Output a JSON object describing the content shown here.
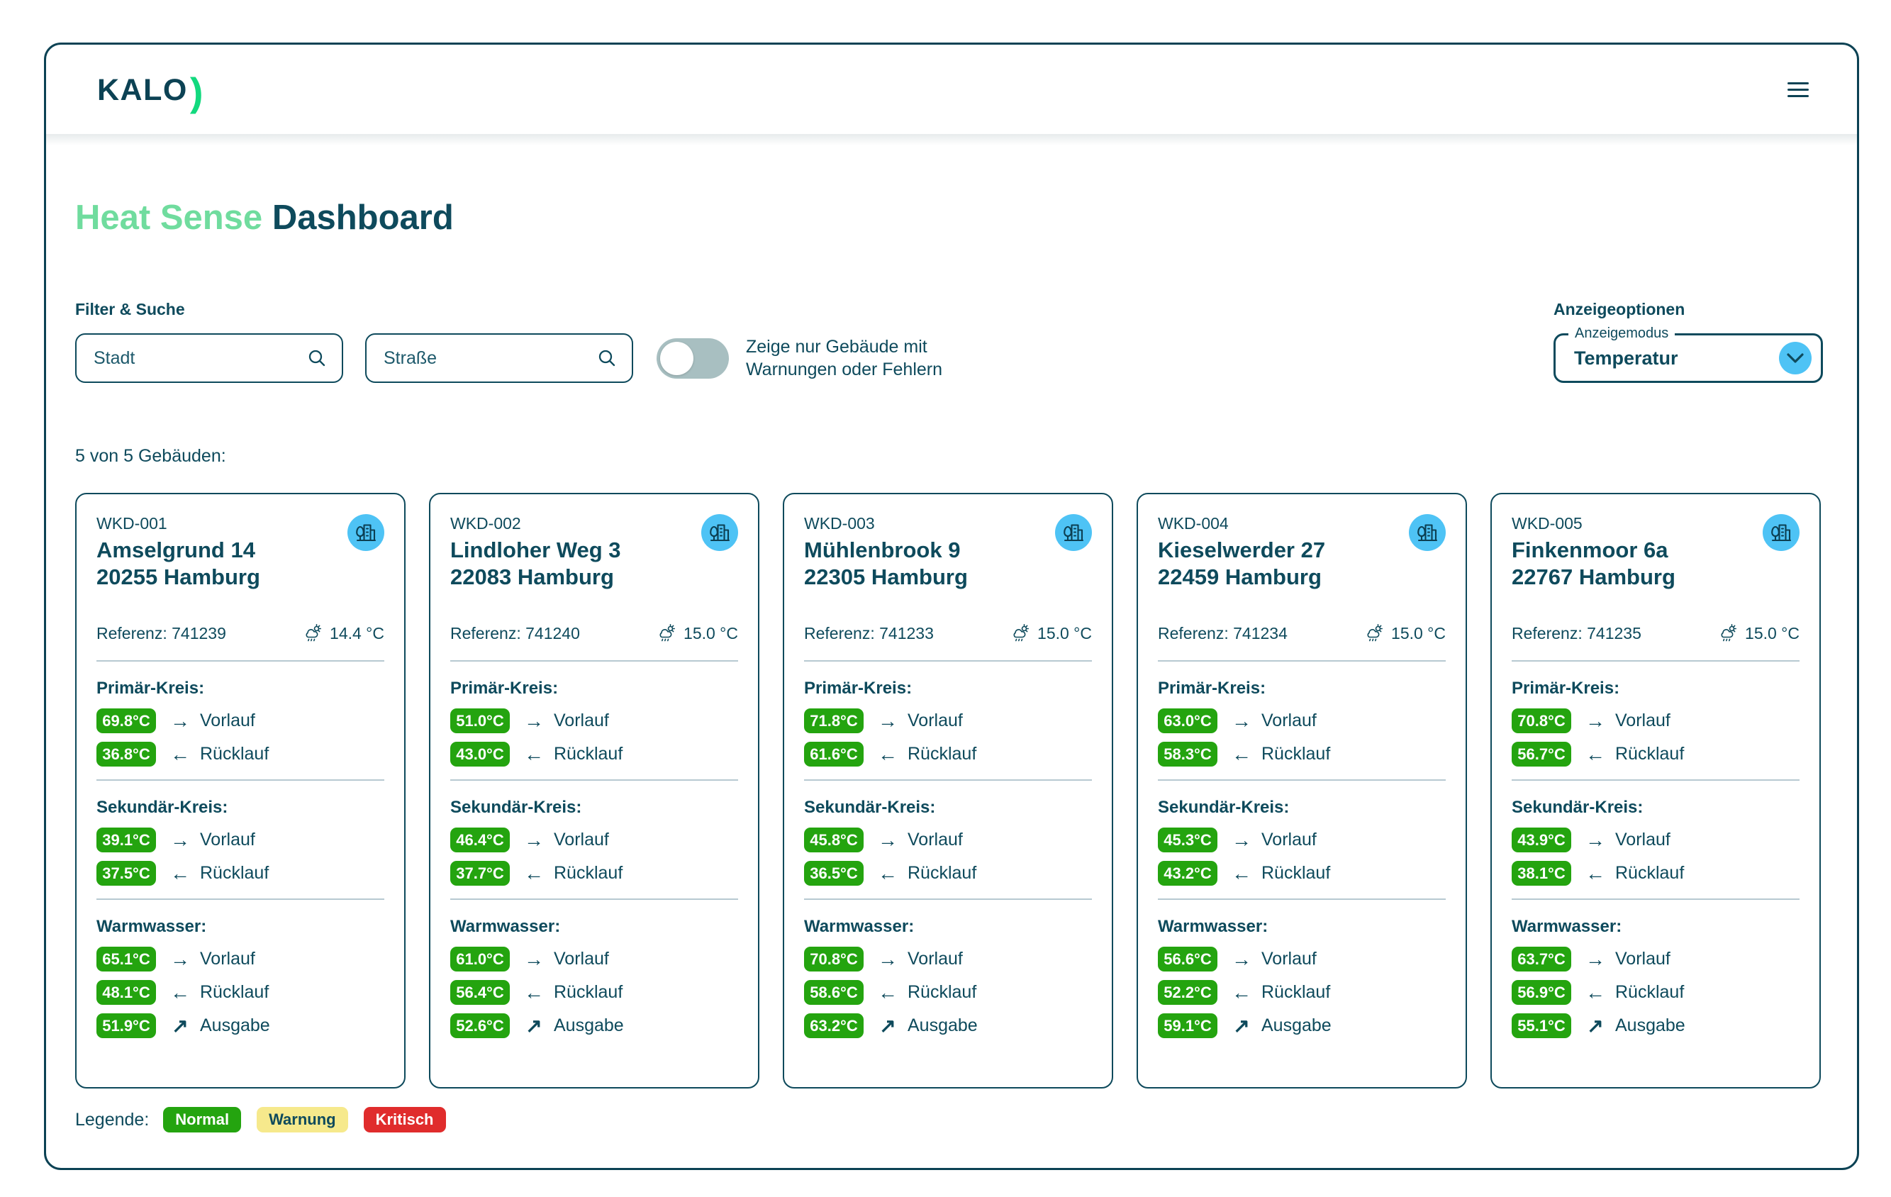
{
  "colors": {
    "dark_teal": "#0e4a5c",
    "logo_green": "#12d97e",
    "title_green": "#70dc9e",
    "badge_green": "#24a40f",
    "warning_yellow": "#f6e98c",
    "critical_red": "#e02c2c",
    "light_blue": "#4ec3f5",
    "toggle_track": "#a8bfc1"
  },
  "header": {
    "logo_text": "KALO",
    "logo_mark": ")"
  },
  "title": {
    "accent": "Heat Sense",
    "rest": "Dashboard"
  },
  "filters": {
    "heading": "Filter & Suche",
    "city_placeholder": "Stadt",
    "street_placeholder": "Straße",
    "toggle_label_line1": "Zeige nur Gebäude mit",
    "toggle_label_line2": "Warnungen oder Fehlern",
    "toggle_state": "off"
  },
  "display_options": {
    "heading": "Anzeigeoptionen",
    "field_label": "Anzeigemodus",
    "selected_value": "Temperatur"
  },
  "results_count": "5 von 5 Gebäuden:",
  "reference_label": "Referenz:",
  "section_labels": {
    "primary": "Primär-Kreis:",
    "secondary": "Sekundär-Kreis:",
    "warm_water": "Warmwasser:"
  },
  "row_labels": {
    "vorlauf": "Vorlauf",
    "ruecklauf": "Rücklauf",
    "ausgabe": "Ausgabe"
  },
  "icons": {
    "arrow_right": "→",
    "arrow_left": "←",
    "arrow_out": "↗"
  },
  "buildings": [
    {
      "id": "WKD-001",
      "street": "Amselgrund 14",
      "city": "20255 Hamburg",
      "reference": "741239",
      "outside_temp": "14.4 °C",
      "primary": {
        "vorlauf": "69.8°C",
        "ruecklauf": "36.8°C"
      },
      "secondary": {
        "vorlauf": "39.1°C",
        "ruecklauf": "37.5°C"
      },
      "warm_water": {
        "vorlauf": "65.1°C",
        "ruecklauf": "48.1°C",
        "ausgabe": "51.9°C"
      }
    },
    {
      "id": "WKD-002",
      "street": "Lindloher Weg 3",
      "city": "22083 Hamburg",
      "reference": "741240",
      "outside_temp": "15.0 °C",
      "primary": {
        "vorlauf": "51.0°C",
        "ruecklauf": "43.0°C"
      },
      "secondary": {
        "vorlauf": "46.4°C",
        "ruecklauf": "37.7°C"
      },
      "warm_water": {
        "vorlauf": "61.0°C",
        "ruecklauf": "56.4°C",
        "ausgabe": "52.6°C"
      }
    },
    {
      "id": "WKD-003",
      "street": "Mühlenbrook 9",
      "city": "22305 Hamburg",
      "reference": "741233",
      "outside_temp": "15.0 °C",
      "primary": {
        "vorlauf": "71.8°C",
        "ruecklauf": "61.6°C"
      },
      "secondary": {
        "vorlauf": "45.8°C",
        "ruecklauf": "36.5°C"
      },
      "warm_water": {
        "vorlauf": "70.8°C",
        "ruecklauf": "58.6°C",
        "ausgabe": "63.2°C"
      }
    },
    {
      "id": "WKD-004",
      "street": "Kieselwerder 27",
      "city": "22459 Hamburg",
      "reference": "741234",
      "outside_temp": "15.0 °C",
      "primary": {
        "vorlauf": "63.0°C",
        "ruecklauf": "58.3°C"
      },
      "secondary": {
        "vorlauf": "45.3°C",
        "ruecklauf": "43.2°C"
      },
      "warm_water": {
        "vorlauf": "56.6°C",
        "ruecklauf": "52.2°C",
        "ausgabe": "59.1°C"
      }
    },
    {
      "id": "WKD-005",
      "street": "Finkenmoor 6a",
      "city": "22767 Hamburg",
      "reference": "741235",
      "outside_temp": "15.0 °C",
      "primary": {
        "vorlauf": "70.8°C",
        "ruecklauf": "56.7°C"
      },
      "secondary": {
        "vorlauf": "43.9°C",
        "ruecklauf": "38.1°C"
      },
      "warm_water": {
        "vorlauf": "63.7°C",
        "ruecklauf": "56.9°C",
        "ausgabe": "55.1°C"
      }
    }
  ],
  "legend": {
    "label": "Legende:",
    "items": [
      {
        "label": "Normal",
        "bg": "#24a40f",
        "fg": "#ffffff"
      },
      {
        "label": "Warnung",
        "bg": "#f6e98c",
        "fg": "#0e4a5c"
      },
      {
        "label": "Kritisch",
        "bg": "#e02c2c",
        "fg": "#ffffff"
      }
    ]
  }
}
